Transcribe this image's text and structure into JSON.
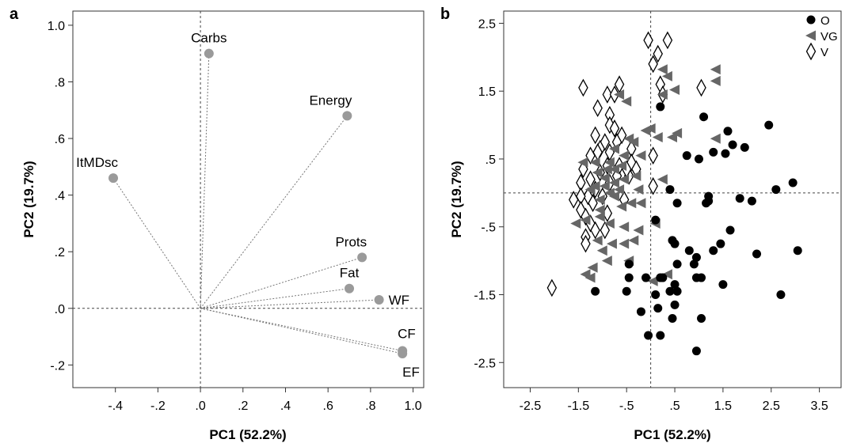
{
  "chart_data": [
    {
      "panel_label": "a",
      "type": "scatter",
      "subtype": "loading-plot",
      "xlabel": "PC1 (52.2%)",
      "ylabel": "PC2 (19.7%)",
      "xlim": [
        -0.6,
        1.05
      ],
      "ylim": [
        -0.28,
        1.05
      ],
      "xticks": [
        -0.4,
        -0.2,
        0.0,
        0.2,
        0.4,
        0.6,
        0.8,
        1.0
      ],
      "xtick_labels": [
        "-.4",
        "-.2",
        ".0",
        ".2",
        ".4",
        ".6",
        ".8",
        "1.0"
      ],
      "yticks": [
        -0.2,
        0.0,
        0.2,
        0.4,
        0.6,
        0.8,
        1.0
      ],
      "ytick_labels": [
        "-.2",
        ".0",
        ".2",
        ".4",
        ".6",
        ".8",
        "1.0"
      ],
      "reference_lines": {
        "x": 0,
        "y": 0
      },
      "grid": false,
      "point_color": "#9a9a9a",
      "points": [
        {
          "label": "Carbs",
          "x": 0.04,
          "y": 0.9,
          "label_pos": "above"
        },
        {
          "label": "Energy",
          "x": 0.69,
          "y": 0.68,
          "label_pos": "above-left"
        },
        {
          "label": "ItMDsc",
          "x": -0.41,
          "y": 0.46,
          "label_pos": "above-left"
        },
        {
          "label": "Prots",
          "x": 0.76,
          "y": 0.18,
          "label_pos": "above-left"
        },
        {
          "label": "Fat",
          "x": 0.7,
          "y": 0.07,
          "label_pos": "above"
        },
        {
          "label": "WF",
          "x": 0.84,
          "y": 0.03,
          "label_pos": "right"
        },
        {
          "label": "CF",
          "x": 0.95,
          "y": -0.15,
          "label_pos": "above-right"
        },
        {
          "label": "EF",
          "x": 0.95,
          "y": -0.16,
          "label_pos": "below-right"
        }
      ]
    },
    {
      "panel_label": "b",
      "type": "scatter",
      "xlabel": "PC1 (52.2%)",
      "ylabel": "PC2 (19.7%)",
      "xlim": [
        -3.05,
        3.95
      ],
      "ylim": [
        -2.87,
        2.68
      ],
      "xticks": [
        -2.5,
        -1.5,
        -0.5,
        0.5,
        1.5,
        2.5,
        3.5
      ],
      "xtick_labels": [
        "-2.5",
        "-1.5",
        "-.5",
        ".5",
        "1.5",
        "2.5",
        "3.5"
      ],
      "yticks": [
        2.5,
        1.5,
        0.5,
        -0.5,
        -1.5,
        -2.5
      ],
      "ytick_labels": [
        "2.5",
        "1.5",
        ".5",
        "-.5",
        "-1.5",
        "-2.5"
      ],
      "reference_lines": {
        "x": 0,
        "y": 0
      },
      "grid": false,
      "legend_position": "top-right",
      "series": [
        {
          "name": "O",
          "marker": "circle",
          "color": "#000000",
          "points": [
            [
              0.2,
              1.27
            ],
            [
              1.1,
              1.12
            ],
            [
              2.45,
              1.0
            ],
            [
              1.7,
              0.71
            ],
            [
              1.95,
              0.67
            ],
            [
              1.3,
              0.6
            ],
            [
              1.55,
              0.58
            ],
            [
              1.0,
              0.5
            ],
            [
              0.75,
              0.55
            ],
            [
              1.6,
              0.91
            ],
            [
              2.95,
              0.15
            ],
            [
              2.6,
              0.05
            ],
            [
              0.4,
              0.05
            ],
            [
              0.55,
              -0.15
            ],
            [
              1.2,
              -0.05
            ],
            [
              1.2,
              -0.12
            ],
            [
              1.15,
              -0.15
            ],
            [
              2.1,
              -0.12
            ],
            [
              1.85,
              -0.08
            ],
            [
              0.1,
              -0.4
            ],
            [
              0.45,
              -0.7
            ],
            [
              0.5,
              -0.75
            ],
            [
              1.65,
              -0.55
            ],
            [
              1.45,
              -0.75
            ],
            [
              0.8,
              -0.85
            ],
            [
              0.95,
              -0.95
            ],
            [
              1.3,
              -0.85
            ],
            [
              2.2,
              -0.9
            ],
            [
              3.05,
              -0.85
            ],
            [
              0.55,
              -1.05
            ],
            [
              0.9,
              -1.05
            ],
            [
              0.2,
              -1.25
            ],
            [
              -0.1,
              -1.25
            ],
            [
              -0.45,
              -1.25
            ],
            [
              0.25,
              -1.25
            ],
            [
              0.95,
              -1.25
            ],
            [
              1.05,
              -1.25
            ],
            [
              -0.5,
              -1.45
            ],
            [
              0.4,
              -1.45
            ],
            [
              -1.15,
              -1.45
            ],
            [
              -0.45,
              -1.05
            ],
            [
              0.5,
              -1.35
            ],
            [
              0.55,
              -1.45
            ],
            [
              1.5,
              -1.35
            ],
            [
              2.7,
              -1.5
            ],
            [
              0.1,
              -1.5
            ],
            [
              0.15,
              -1.7
            ],
            [
              0.5,
              -1.65
            ],
            [
              -0.2,
              -1.75
            ],
            [
              1.05,
              -1.85
            ],
            [
              0.45,
              -1.85
            ],
            [
              0.2,
              -2.1
            ],
            [
              -0.05,
              -2.1
            ],
            [
              0.95,
              -2.33
            ]
          ]
        },
        {
          "name": "VG",
          "marker": "triangle-left",
          "color": "#666666",
          "points": [
            [
              0.25,
              1.82
            ],
            [
              0.35,
              1.72
            ],
            [
              1.35,
              1.82
            ],
            [
              1.35,
              1.65
            ],
            [
              0.5,
              1.52
            ],
            [
              0.25,
              1.45
            ],
            [
              -0.65,
              1.45
            ],
            [
              -0.5,
              1.35
            ],
            [
              -0.1,
              0.92
            ],
            [
              0.0,
              0.95
            ],
            [
              0.55,
              0.88
            ],
            [
              0.45,
              0.82
            ],
            [
              1.35,
              0.8
            ],
            [
              0.15,
              0.82
            ],
            [
              -0.45,
              0.8
            ],
            [
              -0.35,
              0.75
            ],
            [
              -0.75,
              0.65
            ],
            [
              -0.55,
              0.55
            ],
            [
              -0.2,
              0.55
            ],
            [
              -0.85,
              0.45
            ],
            [
              -0.6,
              0.4
            ],
            [
              -0.75,
              0.35
            ],
            [
              -0.9,
              0.35
            ],
            [
              -1.15,
              0.45
            ],
            [
              -1.4,
              0.45
            ],
            [
              -1.1,
              0.3
            ],
            [
              -0.95,
              0.22
            ],
            [
              -0.3,
              0.25
            ],
            [
              0.25,
              0.2
            ],
            [
              -0.55,
              0.2
            ],
            [
              -0.75,
              0.15
            ],
            [
              -0.95,
              0.1
            ],
            [
              -1.15,
              0.1
            ],
            [
              -1.25,
              0.05
            ],
            [
              -0.85,
              0.0
            ],
            [
              -0.65,
              0.05
            ],
            [
              -0.25,
              0.05
            ],
            [
              -1.05,
              -0.1
            ],
            [
              -0.75,
              -0.05
            ],
            [
              -1.05,
              -0.25
            ],
            [
              -0.6,
              -0.2
            ],
            [
              -0.4,
              -0.15
            ],
            [
              -0.2,
              -0.15
            ],
            [
              -1.55,
              -0.45
            ],
            [
              -1.35,
              -0.4
            ],
            [
              -1.05,
              -0.35
            ],
            [
              -0.85,
              -0.45
            ],
            [
              -0.55,
              -0.5
            ],
            [
              -0.25,
              -0.55
            ],
            [
              0.1,
              -0.45
            ],
            [
              -0.35,
              -0.7
            ],
            [
              -0.55,
              -0.75
            ],
            [
              -1.1,
              -0.7
            ],
            [
              -1.0,
              -0.85
            ],
            [
              -0.8,
              -0.75
            ],
            [
              -1.2,
              -1.1
            ],
            [
              -1.35,
              -1.2
            ],
            [
              -1.25,
              -1.25
            ],
            [
              -0.45,
              -1.0
            ],
            [
              0.35,
              -1.2
            ],
            [
              -0.9,
              -1.0
            ],
            [
              0.05,
              -1.3
            ]
          ]
        },
        {
          "name": "V",
          "marker": "diamond-open",
          "color": "#000000",
          "points": [
            [
              -0.05,
              2.25
            ],
            [
              0.35,
              2.25
            ],
            [
              0.15,
              2.05
            ],
            [
              0.05,
              1.9
            ],
            [
              0.2,
              1.6
            ],
            [
              0.25,
              1.45
            ],
            [
              1.05,
              1.55
            ],
            [
              -1.4,
              1.55
            ],
            [
              -0.9,
              1.45
            ],
            [
              -0.65,
              1.6
            ],
            [
              -0.75,
              1.45
            ],
            [
              -1.1,
              1.25
            ],
            [
              -0.85,
              1.15
            ],
            [
              -0.85,
              1.0
            ],
            [
              -0.75,
              0.95
            ],
            [
              -1.15,
              0.85
            ],
            [
              -0.6,
              0.85
            ],
            [
              -0.7,
              0.75
            ],
            [
              -0.95,
              0.75
            ],
            [
              -1.05,
              0.65
            ],
            [
              -0.4,
              0.65
            ],
            [
              -1.1,
              0.6
            ],
            [
              -1.25,
              0.55
            ],
            [
              -0.85,
              0.6
            ],
            [
              -0.4,
              0.45
            ],
            [
              -0.9,
              0.4
            ],
            [
              -0.65,
              0.4
            ],
            [
              -0.3,
              0.35
            ],
            [
              -1.4,
              0.35
            ],
            [
              -0.7,
              0.25
            ],
            [
              -0.45,
              0.25
            ],
            [
              -1.25,
              0.2
            ],
            [
              -1.05,
              0.3
            ],
            [
              -1.45,
              0.15
            ],
            [
              -0.85,
              0.15
            ],
            [
              -1.15,
              0.05
            ],
            [
              -1.3,
              -0.05
            ],
            [
              -1.45,
              -0.05
            ],
            [
              -1.6,
              -0.1
            ],
            [
              -1.0,
              -0.05
            ],
            [
              -0.55,
              -0.1
            ],
            [
              -1.2,
              -0.15
            ],
            [
              -1.45,
              -0.25
            ],
            [
              -1.35,
              -0.35
            ],
            [
              -1.25,
              -0.45
            ],
            [
              -0.9,
              -0.3
            ],
            [
              -1.15,
              -0.55
            ],
            [
              -1.35,
              -0.65
            ],
            [
              -0.95,
              -0.55
            ],
            [
              -1.35,
              -0.75
            ],
            [
              0.05,
              0.55
            ],
            [
              0.05,
              0.1
            ],
            [
              -2.05,
              -1.4
            ],
            [
              -0.5,
              0.35
            ]
          ]
        }
      ]
    }
  ]
}
